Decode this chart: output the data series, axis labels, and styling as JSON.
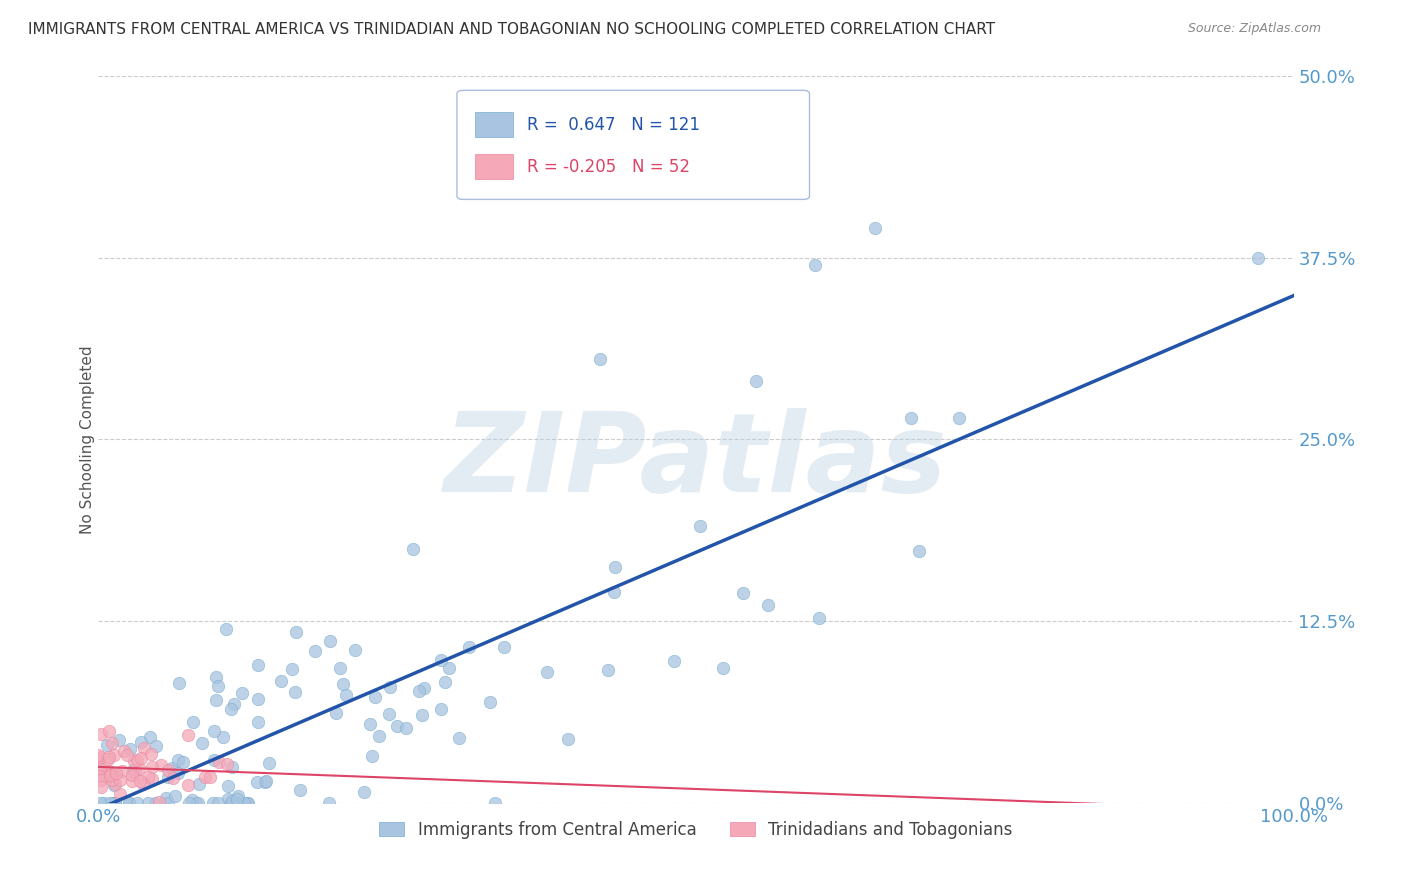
{
  "title": "IMMIGRANTS FROM CENTRAL AMERICA VS TRINIDADIAN AND TOBAGONIAN NO SCHOOLING COMPLETED CORRELATION CHART",
  "source": "Source: ZipAtlas.com",
  "ylabel": "No Schooling Completed",
  "xlim": [
    0,
    1.0
  ],
  "ylim": [
    0,
    0.5
  ],
  "yticks": [
    0.0,
    0.125,
    0.25,
    0.375,
    0.5
  ],
  "ytick_labels": [
    "0.0%",
    "12.5%",
    "25.0%",
    "37.5%",
    "50.0%"
  ],
  "xticks": [
    0.0,
    1.0
  ],
  "xtick_labels": [
    "0.0%",
    "100.0%"
  ],
  "blue_R": 0.647,
  "blue_N": 121,
  "pink_R": -0.205,
  "pink_N": 52,
  "blue_color": "#a8c4e0",
  "blue_edge_color": "#7aaed0",
  "pink_color": "#f4a8b8",
  "pink_edge_color": "#e888a0",
  "blue_line_color": "#2255aa",
  "pink_line_color": "#dd4466",
  "legend_label_blue": "Immigrants from Central America",
  "legend_label_pink": "Trinidadians and Tobagonians",
  "watermark": "ZIPatlas",
  "background_color": "#ffffff",
  "grid_color": "#cccccc",
  "axis_label_color": "#5599cc",
  "ylabel_color": "#555555",
  "title_color": "#333333",
  "source_color": "#888888"
}
